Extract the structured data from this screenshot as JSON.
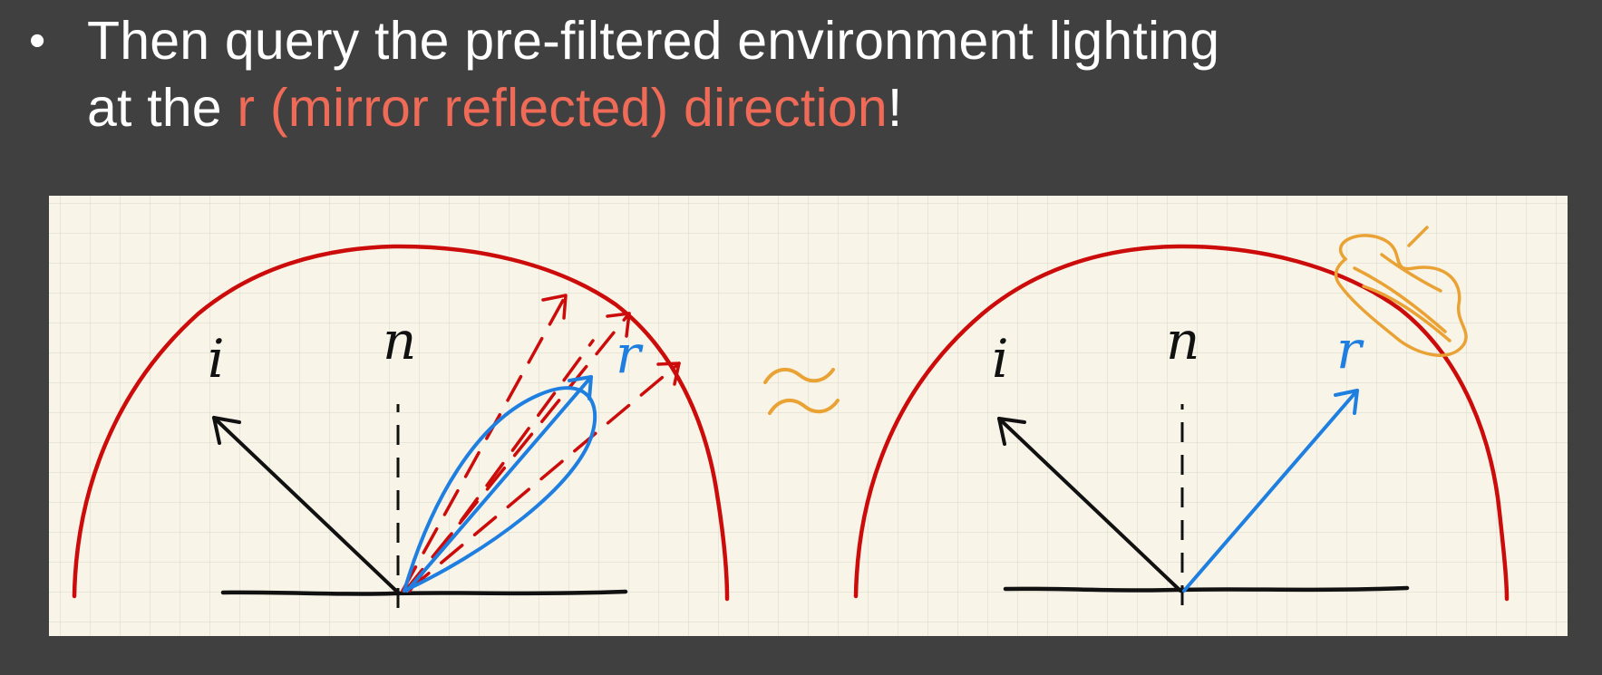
{
  "bullet": {
    "symbol": "•",
    "line1": "Then query the pre-filtered environment lighting",
    "line2_before": "at the ",
    "line2_highlight": "r (mirror reflected) direction",
    "line2_after": "!"
  },
  "diagram": {
    "left": {
      "label_i": "i",
      "label_n": "n",
      "label_r": "r"
    },
    "approx_symbol": "≈",
    "right": {
      "label_i": "i",
      "label_n": "n",
      "label_r": "r"
    }
  },
  "colors": {
    "background": "#404040",
    "paper": "#f8f5e8",
    "grid": "#d9d6c7",
    "hemisphere": "#cc0b0b",
    "reflect": "#1f7fe0",
    "highlight_text": "#ef6a57",
    "approx": "#e9a233",
    "ink": "#111111"
  }
}
